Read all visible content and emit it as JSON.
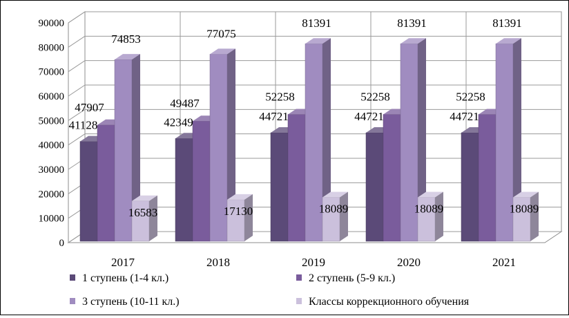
{
  "chart_data": {
    "type": "bar",
    "variant": "3d-clustered",
    "title": "",
    "xlabel": "",
    "ylabel": "",
    "ylim": [
      0,
      90000
    ],
    "y_ticks": [
      "0",
      "10000",
      "20000",
      "30000",
      "40000",
      "50000",
      "60000",
      "70000",
      "80000",
      "90000"
    ],
    "categories": [
      "2017",
      "2018",
      "2019",
      "2020",
      "2021"
    ],
    "series": [
      {
        "name": "1 ступень (1-4 кл.)",
        "color": "#5b4a78",
        "values": [
          41128,
          42349,
          44721,
          44721,
          44721
        ]
      },
      {
        "name": "2 ступень (5-9 кл.)",
        "color": "#7a5c9c",
        "values": [
          47907,
          49487,
          52258,
          52258,
          52258
        ]
      },
      {
        "name": "3 ступень (10-11 кл.)",
        "color": "#a08cc0",
        "values": [
          74853,
          77075,
          81391,
          81391,
          81391
        ]
      },
      {
        "name": "Классы коррекционного обучения",
        "color": "#cbc0dc",
        "values": [
          16583,
          17130,
          18089,
          18089,
          18089
        ]
      }
    ],
    "grid": true,
    "legend_position": "bottom"
  }
}
